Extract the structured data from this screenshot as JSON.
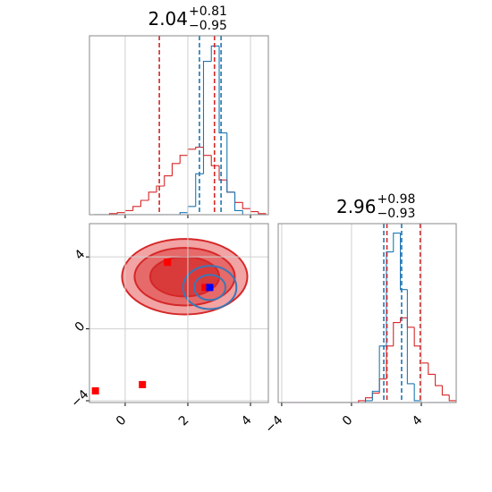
{
  "chart_data": [
    {
      "type": "histogram",
      "title": {
        "value": "2.04",
        "plus": "+0.81",
        "minus": "−0.95"
      },
      "bins": [
        -1.0,
        -0.75,
        -0.5,
        -0.25,
        0,
        0.25,
        0.5,
        0.75,
        1.0,
        1.25,
        1.5,
        1.75,
        2.0,
        2.25,
        2.5,
        2.75,
        3.0,
        3.25,
        3.5,
        3.75,
        4.0,
        4.25,
        4.5
      ],
      "series": [
        {
          "color": "#d62728",
          "values": [
            0,
            0,
            1,
            2,
            4,
            8,
            14,
            22,
            28,
            38,
            50,
            58,
            64,
            66,
            58,
            48,
            34,
            22,
            12,
            6,
            3,
            1
          ]
        },
        {
          "color": "#1f77b4",
          "values": [
            0,
            0,
            0,
            0,
            0,
            0,
            0,
            0,
            0,
            0,
            0,
            2,
            8,
            40,
            150,
            165,
            80,
            22,
            4,
            0,
            0,
            0
          ]
        }
      ],
      "quantiles": [
        {
          "color": "#d62728",
          "values": [
            1.09,
            2.85
          ]
        },
        {
          "color": "#1f77b4",
          "values": [
            2.37,
            3.06
          ]
        }
      ],
      "xlim": [
        -1.14,
        4.57
      ],
      "xticks": [
        0,
        2,
        4
      ],
      "ylim": [
        0,
        175
      ],
      "grid": true
    },
    {
      "type": "contour",
      "xlim": [
        -1.14,
        4.57
      ],
      "ylim": [
        -4.1,
        5.85
      ],
      "xticks": [
        0,
        2,
        4
      ],
      "yticks": [
        {
          "value": -4,
          "label": "−4"
        },
        0,
        4
      ],
      "grid": true,
      "contours": [
        {
          "color": "#d62728",
          "fills": [
            "#f2a3a3",
            "#e66a6a",
            "#d93a3a"
          ],
          "center": [
            1.9,
            2.9
          ],
          "radii": [
            [
              2.0,
              2.1
            ],
            [
              1.6,
              1.6
            ],
            [
              1.1,
              1.1
            ]
          ]
        },
        {
          "color": "#3a78b8",
          "fills": [
            "none",
            "none"
          ],
          "center": [
            2.7,
            2.3
          ],
          "radii": [
            [
              0.85,
              1.2
            ],
            [
              0.5,
              0.7
            ]
          ]
        }
      ],
      "points": [
        {
          "color": "#ff0000",
          "x": [
            1.35,
            2.55,
            0.55,
            -0.95
          ],
          "y": [
            3.7,
            2.3,
            -3.1,
            -3.45
          ]
        },
        {
          "color": "#0000ff",
          "x": [
            2.7
          ],
          "y": [
            2.3
          ]
        }
      ]
    },
    {
      "type": "histogram",
      "title": {
        "value": "2.96",
        "plus": "+0.98",
        "minus": "−0.93"
      },
      "bins": [
        -4.0,
        -3.6,
        -3.2,
        -2.8,
        -2.4,
        -2.0,
        -1.6,
        -1.2,
        -0.8,
        -0.4,
        0,
        0.4,
        0.8,
        1.2,
        1.6,
        2.0,
        2.4,
        2.8,
        3.2,
        3.6,
        4.0,
        4.4,
        4.8,
        5.2,
        5.6,
        6.0
      ],
      "series": [
        {
          "color": "#d62728",
          "values": [
            0,
            0,
            0,
            0,
            0,
            0,
            0,
            0,
            0,
            0,
            0,
            2,
            5,
            10,
            25,
            60,
            85,
            90,
            80,
            60,
            42,
            30,
            18,
            8,
            2
          ]
        },
        {
          "color": "#1f77b4",
          "values": [
            0,
            0,
            0,
            0,
            0,
            0,
            0,
            0,
            0,
            0,
            0,
            0,
            2,
            12,
            60,
            160,
            180,
            120,
            20,
            2,
            0,
            0,
            0,
            0,
            0
          ]
        }
      ],
      "quantiles": [
        {
          "color": "#d62728",
          "values": [
            2.03,
            3.94
          ]
        },
        {
          "color": "#1f77b4",
          "values": [
            1.85,
            2.87
          ]
        }
      ],
      "xlim": [
        -4.2,
        6.0
      ],
      "xticks": [
        {
          "value": -4,
          "label": "−4"
        },
        0,
        4
      ],
      "xticklabels": true,
      "ylim": [
        0,
        190
      ],
      "grid": true
    }
  ]
}
